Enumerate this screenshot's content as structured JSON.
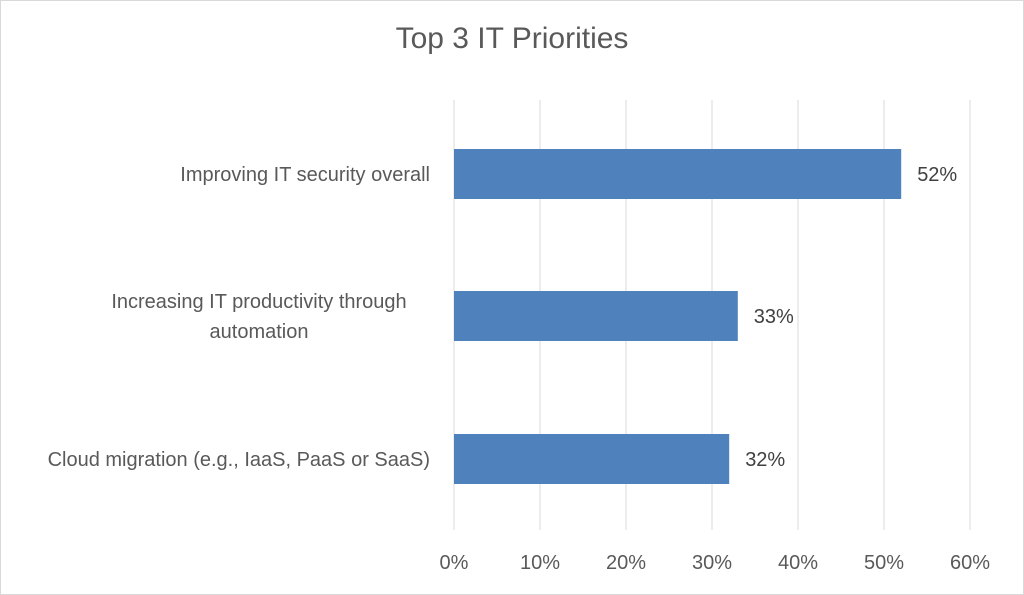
{
  "chart_data": {
    "type": "bar",
    "orientation": "horizontal",
    "title": "Top 3 IT Priorities",
    "categories": [
      [
        "Improving IT security overall"
      ],
      [
        "Increasing IT productivity through",
        "automation"
      ],
      [
        "Cloud migration (e.g., IaaS, PaaS or SaaS)"
      ]
    ],
    "values": [
      52,
      33,
      32
    ],
    "data_labels": [
      "52%",
      "33%",
      "32%"
    ],
    "xlim": [
      0,
      60
    ],
    "x_ticks": [
      0,
      10,
      20,
      30,
      40,
      50,
      60
    ],
    "x_tick_labels": [
      "0%",
      "10%",
      "20%",
      "30%",
      "40%",
      "50%",
      "60%"
    ],
    "gridlines": true,
    "bar_color": "#4f81bd",
    "gridline_color": "#d9d9d9",
    "text_color": "#595959"
  }
}
